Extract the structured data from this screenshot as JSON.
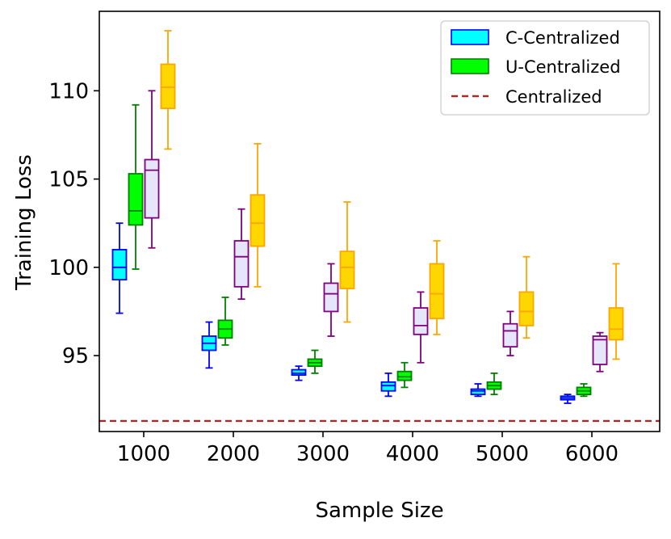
{
  "chart_data": {
    "type": "box",
    "xlabel": "Sample Size",
    "ylabel": "Training Loss",
    "categories": [
      "1000",
      "2000",
      "3000",
      "4000",
      "5000",
      "6000"
    ],
    "ylim": [
      90.7,
      114.5
    ],
    "yticks": [
      95,
      100,
      105,
      110
    ],
    "grid": false,
    "legend_position": "top-right",
    "legend": [
      {
        "label": "C-Centralized",
        "type": "box",
        "fill": "#00ffff",
        "edge": "#0000ff"
      },
      {
        "label": "U-Centralized",
        "type": "box",
        "fill": "#00ff00",
        "edge": "#008000"
      },
      {
        "label": "Centralized",
        "type": "dashed-line",
        "color": "#a52a2a"
      }
    ],
    "reference_line": {
      "name": "Centralized",
      "y": 91.3,
      "color": "#a52a2a",
      "style": "dashed"
    },
    "series": [
      {
        "name": "C-Centralized",
        "fill": "#00ffff",
        "edge": "#0000ff",
        "boxes": [
          {
            "whislo": 97.4,
            "q1": 99.3,
            "med": 100.0,
            "q3": 101.0,
            "whishi": 102.5
          },
          {
            "whislo": 94.3,
            "q1": 95.3,
            "med": 95.7,
            "q3": 96.1,
            "whishi": 96.9
          },
          {
            "whislo": 93.6,
            "q1": 93.9,
            "med": 94.0,
            "q3": 94.2,
            "whishi": 94.4
          },
          {
            "whislo": 92.7,
            "q1": 93.0,
            "med": 93.3,
            "q3": 93.5,
            "whishi": 94.0
          },
          {
            "whislo": 92.7,
            "q1": 92.8,
            "med": 93.0,
            "q3": 93.1,
            "whishi": 93.4
          },
          {
            "whislo": 92.3,
            "q1": 92.5,
            "med": 92.6,
            "q3": 92.7,
            "whishi": 92.8
          }
        ]
      },
      {
        "name": "U-Centralized",
        "fill": "#00ff00",
        "edge": "#008000",
        "boxes": [
          {
            "whislo": 99.9,
            "q1": 102.4,
            "med": 103.2,
            "q3": 105.3,
            "whishi": 109.2
          },
          {
            "whislo": 95.6,
            "q1": 96.0,
            "med": 96.5,
            "q3": 97.0,
            "whishi": 98.3
          },
          {
            "whislo": 94.0,
            "q1": 94.4,
            "med": 94.6,
            "q3": 94.8,
            "whishi": 95.3
          },
          {
            "whislo": 93.2,
            "q1": 93.6,
            "med": 93.8,
            "q3": 94.1,
            "whishi": 94.6
          },
          {
            "whislo": 92.8,
            "q1": 93.1,
            "med": 93.3,
            "q3": 93.5,
            "whishi": 94.0
          },
          {
            "whislo": 92.7,
            "q1": 92.8,
            "med": 93.0,
            "q3": 93.2,
            "whishi": 93.4
          }
        ]
      },
      {
        "fill": "#e6e6fa",
        "edge": "#800080",
        "boxes": [
          {
            "whislo": 101.1,
            "q1": 102.8,
            "med": 105.5,
            "q3": 106.1,
            "whishi": 110.0
          },
          {
            "whislo": 98.2,
            "q1": 98.9,
            "med": 100.6,
            "q3": 101.5,
            "whishi": 103.3
          },
          {
            "whislo": 96.1,
            "q1": 97.5,
            "med": 98.5,
            "q3": 99.1,
            "whishi": 100.2
          },
          {
            "whislo": 94.6,
            "q1": 96.2,
            "med": 96.7,
            "q3": 97.7,
            "whishi": 98.6
          },
          {
            "whislo": 95.0,
            "q1": 95.5,
            "med": 96.4,
            "q3": 96.8,
            "whishi": 97.5
          },
          {
            "whislo": 94.1,
            "q1": 94.5,
            "med": 95.9,
            "q3": 96.1,
            "whishi": 96.3
          }
        ]
      },
      {
        "fill": "#ffd700",
        "edge": "#ffa500",
        "boxes": [
          {
            "whislo": 106.7,
            "q1": 109.0,
            "med": 110.2,
            "q3": 111.5,
            "whishi": 113.4
          },
          {
            "whislo": 98.9,
            "q1": 101.2,
            "med": 102.5,
            "q3": 104.1,
            "whishi": 107.0
          },
          {
            "whislo": 96.9,
            "q1": 98.8,
            "med": 100.0,
            "q3": 100.9,
            "whishi": 103.7
          },
          {
            "whislo": 96.2,
            "q1": 97.1,
            "med": 98.5,
            "q3": 100.2,
            "whishi": 101.5
          },
          {
            "whislo": 96.0,
            "q1": 96.7,
            "med": 97.5,
            "q3": 98.6,
            "whishi": 100.6
          },
          {
            "whislo": 94.8,
            "q1": 95.9,
            "med": 96.5,
            "q3": 97.7,
            "whishi": 100.2
          }
        ]
      }
    ]
  }
}
